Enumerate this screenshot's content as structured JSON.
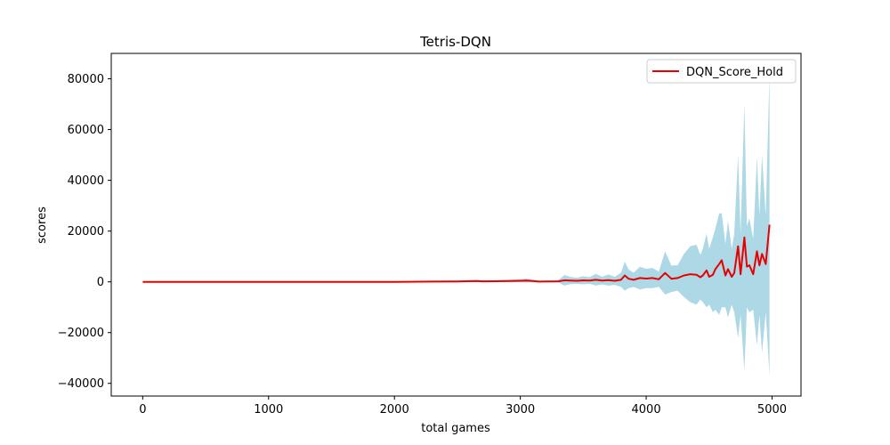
{
  "chart_data": {
    "type": "line",
    "title": "Tetris-DQN",
    "xlabel": "total games",
    "ylabel": "scores",
    "xlim": [
      -250,
      5230
    ],
    "ylim": [
      -45000,
      90000
    ],
    "xticks": [
      0,
      1000,
      2000,
      3000,
      4000,
      5000
    ],
    "xtick_labels": [
      "0",
      "1000",
      "2000",
      "3000",
      "4000",
      "5000"
    ],
    "yticks": [
      -40000,
      -20000,
      0,
      20000,
      40000,
      60000,
      80000
    ],
    "ytick_labels": [
      "−40000",
      "−20000",
      "0",
      "20000",
      "40000",
      "60000",
      "80000"
    ],
    "grid": false,
    "legend_position": "top-right",
    "series": [
      {
        "name": "DQN_Score_Hold",
        "color": "#e60000",
        "band_color": "#add8e6",
        "x": [
          0,
          500,
          1000,
          1500,
          2000,
          2300,
          2500,
          2650,
          2700,
          2800,
          2900,
          3000,
          3050,
          3100,
          3150,
          3200,
          3300,
          3350,
          3400,
          3450,
          3500,
          3550,
          3600,
          3650,
          3700,
          3750,
          3800,
          3830,
          3860,
          3900,
          3950,
          4000,
          4050,
          4100,
          4150,
          4200,
          4250,
          4300,
          4350,
          4400,
          4430,
          4450,
          4480,
          4500,
          4530,
          4550,
          4580,
          4600,
          4630,
          4650,
          4680,
          4700,
          4730,
          4750,
          4780,
          4800,
          4820,
          4850,
          4880,
          4900,
          4920,
          4950,
          4980
        ],
        "y": [
          0,
          0,
          0,
          0,
          0,
          100,
          150,
          300,
          200,
          250,
          300,
          400,
          500,
          300,
          100,
          150,
          200,
          600,
          500,
          400,
          600,
          500,
          800,
          500,
          700,
          400,
          800,
          2500,
          1200,
          800,
          1500,
          1300,
          1500,
          1000,
          3500,
          1200,
          1500,
          2500,
          3000,
          2800,
          1800,
          2500,
          4500,
          2000,
          2800,
          5000,
          7000,
          8500,
          2500,
          5000,
          2000,
          3500,
          14000,
          3000,
          17500,
          6000,
          6500,
          3000,
          12000,
          6500,
          11000,
          7000,
          22500
        ],
        "lower": [
          0,
          0,
          0,
          0,
          0,
          -100,
          -150,
          -100,
          -150,
          -100,
          -150,
          -200,
          -300,
          -200,
          -150,
          -150,
          -200,
          -1500,
          -900,
          -800,
          -1000,
          -800,
          -1500,
          -1000,
          -1500,
          -1200,
          -2000,
          -3500,
          -2500,
          -2000,
          -3000,
          -2500,
          -2500,
          -2000,
          -5000,
          -4000,
          -3500,
          -6000,
          -8000,
          -9000,
          -7000,
          -8000,
          -10000,
          -9000,
          -12000,
          -11000,
          -13000,
          -10000,
          -10000,
          -14000,
          -9000,
          -12000,
          -22000,
          -13000,
          -35000,
          -10000,
          -12000,
          -11000,
          -25000,
          -13000,
          -28000,
          -12000,
          -37000
        ],
        "upper": [
          0,
          0,
          0,
          0,
          0,
          300,
          450,
          700,
          550,
          600,
          750,
          1000,
          1300,
          800,
          350,
          450,
          600,
          2700,
          1900,
          1600,
          2200,
          1800,
          3100,
          2000,
          2900,
          2000,
          3600,
          8000,
          4900,
          3600,
          6000,
          5100,
          5500,
          4000,
          12000,
          6400,
          6500,
          11000,
          14000,
          14600,
          10600,
          13000,
          19000,
          13000,
          17600,
          21000,
          27000,
          27000,
          15000,
          24000,
          13000,
          19000,
          50000,
          19000,
          70000,
          22000,
          25000,
          17000,
          49000,
          26000,
          50000,
          26000,
          82000
        ]
      }
    ]
  }
}
